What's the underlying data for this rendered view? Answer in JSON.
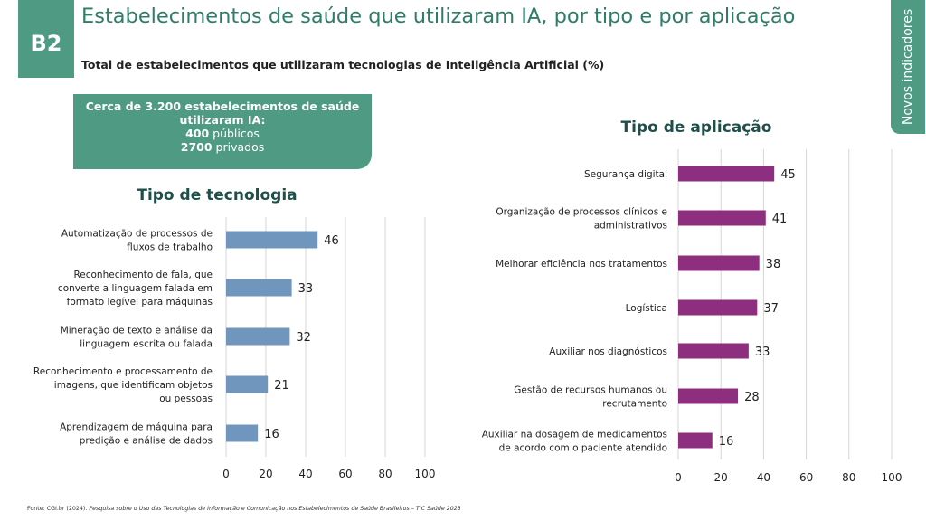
{
  "header": {
    "badge": "B2",
    "title": "Estabelecimentos de saúde que utilizaram IA, por tipo e por aplicação",
    "subtitle": "Total de estabelecimentos que utilizaram tecnologias de Inteligência Artificial (%)",
    "side_tab": "Novos indicadores"
  },
  "summary": {
    "headline": "Cerca de 3.200 estabelecimentos de saúde utilizaram IA:",
    "public_value": "400",
    "public_label": "públicos",
    "private_value": "2700",
    "private_label": "privados"
  },
  "source": {
    "prefix": "Fonte: CGI.br (2024). ",
    "text": "Pesquisa sobre o Uso das Tecnologias de Informação e Comunicação nos Estabelecimentos de Saúde Brasileiros – TIC Saúde 2023"
  },
  "chart_data": [
    {
      "type": "bar",
      "orientation": "horizontal",
      "title": "Tipo de tecnologia",
      "categories": [
        "Automatização de processos de fluxos de trabalho",
        "Reconhecimento de fala, que converte a linguagem falada em formato legível para máquinas",
        "Mineração de texto e análise da linguagem escrita ou falada",
        "Reconhecimento e processamento de imagens, que identificam objetos ou pessoas",
        "Aprendizagem de máquina para predição e análise de dados"
      ],
      "values": [
        46,
        33,
        32,
        21,
        16
      ],
      "xlim": [
        0,
        100
      ],
      "ticks": [
        0,
        20,
        40,
        60,
        80,
        100
      ],
      "grid": true,
      "color": "#7096bd"
    },
    {
      "type": "bar",
      "orientation": "horizontal",
      "title": "Tipo de aplicação",
      "categories": [
        "Segurança digital",
        "Organização de processos clínicos e administrativos",
        "Melhorar eficiência nos tratamentos",
        "Logística",
        "Auxiliar nos diagnósticos",
        "Gestão de recursos humanos ou recrutamento",
        "Auxiliar na dosagem de medicamentos de acordo com o paciente atendido"
      ],
      "values": [
        45,
        41,
        38,
        37,
        33,
        28,
        16
      ],
      "xlim": [
        0,
        100
      ],
      "ticks": [
        0,
        20,
        40,
        60,
        80,
        100
      ],
      "grid": true,
      "color": "#8e2e7e"
    }
  ]
}
